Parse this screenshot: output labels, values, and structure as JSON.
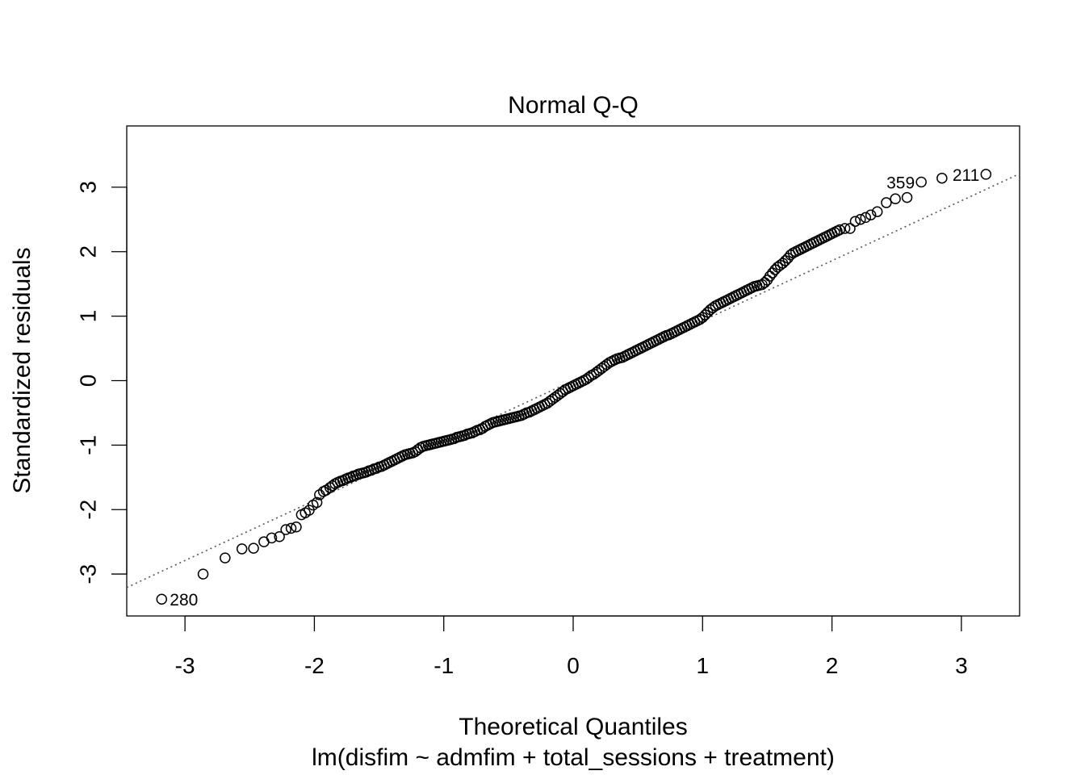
{
  "chart_data": {
    "type": "scatter",
    "title": "Normal Q-Q",
    "xlabel": "Theoretical Quantiles",
    "subtitle": "lm(disfim ~ admfim + total_sessions + treatment)",
    "ylabel": "Standardized residuals",
    "xlim": [
      -3.45,
      3.45
    ],
    "ylim": [
      -3.65,
      3.95
    ],
    "x_ticks": [
      -3,
      -2,
      -1,
      0,
      1,
      2,
      3
    ],
    "x_tick_labels": [
      "-3",
      "-2",
      "-1",
      "0",
      "1",
      "2",
      "3"
    ],
    "y_ticks": [
      -3,
      -2,
      -1,
      0,
      1,
      2,
      3
    ],
    "y_tick_labels": [
      "-3",
      "-2",
      "-1",
      "0",
      "1",
      "2",
      "3"
    ],
    "grid": false,
    "reference_line": {
      "slope": 0.93,
      "intercept": 0.0,
      "style": "dotted",
      "color": "#555555"
    },
    "point_style": {
      "shape": "open-circle",
      "color": "#000000"
    },
    "labeled_points": [
      {
        "x": -3.18,
        "y": -3.39,
        "label": "280",
        "label_side": "right"
      },
      {
        "x": 2.69,
        "y": 3.08,
        "label": "359",
        "label_side": "left"
      },
      {
        "x": 3.19,
        "y": 3.2,
        "label": "211",
        "label_side": "left"
      }
    ],
    "points": [
      [
        -3.18,
        -3.39
      ],
      [
        -2.86,
        -3.0
      ],
      [
        -2.69,
        -2.75
      ],
      [
        -2.56,
        -2.61
      ],
      [
        -2.47,
        -2.6
      ],
      [
        -2.39,
        -2.5
      ],
      [
        -2.33,
        -2.44
      ],
      [
        -2.27,
        -2.42
      ],
      [
        -2.22,
        -2.31
      ],
      [
        -2.18,
        -2.29
      ],
      [
        -2.14,
        -2.27
      ],
      [
        -2.1,
        -2.08
      ],
      [
        -2.07,
        -2.05
      ],
      [
        -2.04,
        -2.01
      ],
      [
        -2.01,
        -1.93
      ],
      [
        -1.98,
        -1.89
      ],
      [
        -1.96,
        -1.77
      ],
      [
        -1.93,
        -1.72
      ],
      [
        -1.91,
        -1.7
      ],
      [
        -1.88,
        -1.66
      ],
      [
        -1.86,
        -1.63
      ],
      [
        -1.84,
        -1.6
      ],
      [
        -1.82,
        -1.58
      ],
      [
        -1.8,
        -1.56
      ],
      [
        -1.78,
        -1.55
      ],
      [
        -1.76,
        -1.53
      ],
      [
        -1.74,
        -1.51
      ],
      [
        -1.72,
        -1.5
      ],
      [
        -1.7,
        -1.48
      ],
      [
        -1.68,
        -1.47
      ],
      [
        -1.66,
        -1.45
      ],
      [
        -1.64,
        -1.44
      ],
      [
        -1.62,
        -1.43
      ],
      [
        -1.6,
        -1.42
      ],
      [
        -1.58,
        -1.4
      ],
      [
        -1.56,
        -1.39
      ],
      [
        -1.54,
        -1.37
      ],
      [
        -1.52,
        -1.36
      ],
      [
        -1.5,
        -1.34
      ],
      [
        -1.48,
        -1.33
      ],
      [
        -1.46,
        -1.31
      ],
      [
        -1.44,
        -1.29
      ],
      [
        -1.42,
        -1.27
      ],
      [
        -1.4,
        -1.25
      ],
      [
        -1.38,
        -1.23
      ],
      [
        -1.36,
        -1.21
      ],
      [
        -1.34,
        -1.19
      ],
      [
        -1.32,
        -1.17
      ],
      [
        -1.3,
        -1.15
      ],
      [
        -1.28,
        -1.14
      ],
      [
        -1.26,
        -1.13
      ],
      [
        -1.24,
        -1.12
      ],
      [
        -1.22,
        -1.1
      ],
      [
        -1.2,
        -1.07
      ],
      [
        -1.18,
        -1.04
      ],
      [
        -1.16,
        -1.02
      ],
      [
        -1.14,
        -1.01
      ],
      [
        -1.12,
        -1.0
      ],
      [
        -1.1,
        -0.99
      ],
      [
        -1.08,
        -0.98
      ],
      [
        -1.06,
        -0.97
      ],
      [
        -1.04,
        -0.96
      ],
      [
        -1.02,
        -0.95
      ],
      [
        -1.0,
        -0.94
      ],
      [
        -0.98,
        -0.93
      ],
      [
        -0.96,
        -0.92
      ],
      [
        -0.94,
        -0.91
      ],
      [
        -0.92,
        -0.9
      ],
      [
        -0.9,
        -0.88
      ],
      [
        -0.88,
        -0.87
      ],
      [
        -0.86,
        -0.86
      ],
      [
        -0.84,
        -0.85
      ],
      [
        -0.82,
        -0.83
      ],
      [
        -0.8,
        -0.82
      ],
      [
        -0.78,
        -0.81
      ],
      [
        -0.76,
        -0.79
      ],
      [
        -0.74,
        -0.77
      ],
      [
        -0.72,
        -0.76
      ],
      [
        -0.7,
        -0.74
      ],
      [
        -0.68,
        -0.71
      ],
      [
        -0.66,
        -0.69
      ],
      [
        -0.64,
        -0.67
      ],
      [
        -0.62,
        -0.65
      ],
      [
        -0.6,
        -0.64
      ],
      [
        -0.58,
        -0.63
      ],
      [
        -0.56,
        -0.62
      ],
      [
        -0.54,
        -0.61
      ],
      [
        -0.52,
        -0.6
      ],
      [
        -0.5,
        -0.59
      ],
      [
        -0.48,
        -0.58
      ],
      [
        -0.46,
        -0.57
      ],
      [
        -0.44,
        -0.56
      ],
      [
        -0.42,
        -0.55
      ],
      [
        -0.4,
        -0.54
      ],
      [
        -0.38,
        -0.52
      ],
      [
        -0.36,
        -0.5
      ],
      [
        -0.34,
        -0.49
      ],
      [
        -0.32,
        -0.47
      ],
      [
        -0.3,
        -0.45
      ],
      [
        -0.28,
        -0.43
      ],
      [
        -0.26,
        -0.41
      ],
      [
        -0.24,
        -0.39
      ],
      [
        -0.22,
        -0.37
      ],
      [
        -0.2,
        -0.35
      ],
      [
        -0.18,
        -0.32
      ],
      [
        -0.16,
        -0.29
      ],
      [
        -0.14,
        -0.26
      ],
      [
        -0.12,
        -0.23
      ],
      [
        -0.1,
        -0.2
      ],
      [
        -0.08,
        -0.17
      ],
      [
        -0.06,
        -0.14
      ],
      [
        -0.04,
        -0.12
      ],
      [
        -0.02,
        -0.1
      ],
      [
        0.0,
        -0.08
      ],
      [
        0.02,
        -0.06
      ],
      [
        0.04,
        -0.04
      ],
      [
        0.06,
        -0.02
      ],
      [
        0.08,
        0.0
      ],
      [
        0.1,
        0.02
      ],
      [
        0.12,
        0.05
      ],
      [
        0.14,
        0.08
      ],
      [
        0.16,
        0.1
      ],
      [
        0.18,
        0.13
      ],
      [
        0.2,
        0.16
      ],
      [
        0.22,
        0.19
      ],
      [
        0.24,
        0.22
      ],
      [
        0.26,
        0.25
      ],
      [
        0.28,
        0.28
      ],
      [
        0.3,
        0.3
      ],
      [
        0.32,
        0.32
      ],
      [
        0.34,
        0.34
      ],
      [
        0.36,
        0.35
      ],
      [
        0.38,
        0.36
      ],
      [
        0.4,
        0.38
      ],
      [
        0.42,
        0.4
      ],
      [
        0.44,
        0.42
      ],
      [
        0.46,
        0.44
      ],
      [
        0.48,
        0.46
      ],
      [
        0.5,
        0.48
      ],
      [
        0.52,
        0.5
      ],
      [
        0.54,
        0.52
      ],
      [
        0.56,
        0.54
      ],
      [
        0.58,
        0.56
      ],
      [
        0.6,
        0.58
      ],
      [
        0.62,
        0.6
      ],
      [
        0.64,
        0.62
      ],
      [
        0.66,
        0.64
      ],
      [
        0.68,
        0.66
      ],
      [
        0.7,
        0.68
      ],
      [
        0.72,
        0.7
      ],
      [
        0.74,
        0.71
      ],
      [
        0.76,
        0.73
      ],
      [
        0.78,
        0.75
      ],
      [
        0.8,
        0.77
      ],
      [
        0.82,
        0.79
      ],
      [
        0.84,
        0.81
      ],
      [
        0.86,
        0.83
      ],
      [
        0.88,
        0.85
      ],
      [
        0.9,
        0.87
      ],
      [
        0.92,
        0.89
      ],
      [
        0.94,
        0.91
      ],
      [
        0.96,
        0.93
      ],
      [
        0.98,
        0.95
      ],
      [
        1.0,
        0.98
      ],
      [
        1.02,
        1.02
      ],
      [
        1.04,
        1.06
      ],
      [
        1.06,
        1.1
      ],
      [
        1.08,
        1.13
      ],
      [
        1.1,
        1.16
      ],
      [
        1.12,
        1.18
      ],
      [
        1.14,
        1.2
      ],
      [
        1.16,
        1.22
      ],
      [
        1.18,
        1.24
      ],
      [
        1.2,
        1.26
      ],
      [
        1.22,
        1.28
      ],
      [
        1.24,
        1.3
      ],
      [
        1.26,
        1.32
      ],
      [
        1.28,
        1.34
      ],
      [
        1.3,
        1.36
      ],
      [
        1.32,
        1.38
      ],
      [
        1.34,
        1.4
      ],
      [
        1.36,
        1.42
      ],
      [
        1.38,
        1.44
      ],
      [
        1.4,
        1.46
      ],
      [
        1.42,
        1.47
      ],
      [
        1.44,
        1.48
      ],
      [
        1.46,
        1.49
      ],
      [
        1.48,
        1.52
      ],
      [
        1.5,
        1.56
      ],
      [
        1.52,
        1.62
      ],
      [
        1.54,
        1.67
      ],
      [
        1.56,
        1.72
      ],
      [
        1.58,
        1.76
      ],
      [
        1.6,
        1.79
      ],
      [
        1.62,
        1.82
      ],
      [
        1.64,
        1.86
      ],
      [
        1.66,
        1.9
      ],
      [
        1.68,
        1.95
      ],
      [
        1.7,
        1.98
      ],
      [
        1.72,
        2.0
      ],
      [
        1.74,
        2.02
      ],
      [
        1.76,
        2.04
      ],
      [
        1.78,
        2.06
      ],
      [
        1.8,
        2.08
      ],
      [
        1.82,
        2.1
      ],
      [
        1.84,
        2.12
      ],
      [
        1.86,
        2.14
      ],
      [
        1.88,
        2.16
      ],
      [
        1.9,
        2.18
      ],
      [
        1.92,
        2.2
      ],
      [
        1.94,
        2.22
      ],
      [
        1.96,
        2.24
      ],
      [
        1.98,
        2.26
      ],
      [
        2.0,
        2.28
      ],
      [
        2.02,
        2.3
      ],
      [
        2.04,
        2.32
      ],
      [
        2.06,
        2.34
      ],
      [
        2.1,
        2.36
      ],
      [
        2.14,
        2.36
      ],
      [
        2.18,
        2.47
      ],
      [
        2.22,
        2.5
      ],
      [
        2.26,
        2.53
      ],
      [
        2.3,
        2.57
      ],
      [
        2.35,
        2.62
      ],
      [
        2.42,
        2.76
      ],
      [
        2.49,
        2.82
      ],
      [
        2.58,
        2.84
      ],
      [
        2.69,
        3.08
      ],
      [
        2.85,
        3.14
      ],
      [
        3.19,
        3.2
      ]
    ]
  }
}
